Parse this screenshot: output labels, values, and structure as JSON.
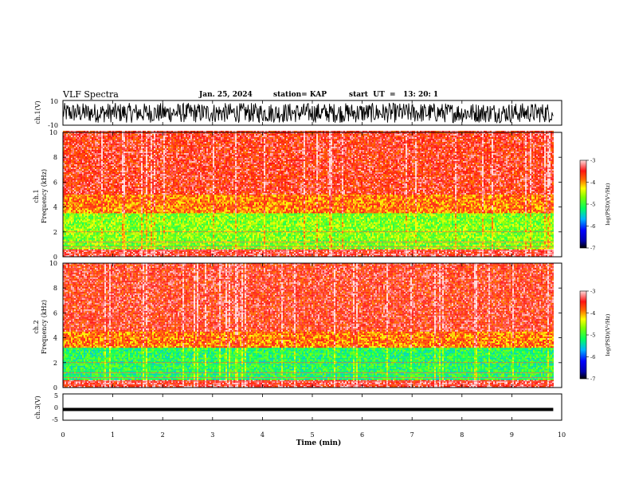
{
  "header": {
    "title": "VLF Spectra",
    "date": "Jan. 25, 2024",
    "station": "station= KAP",
    "start_ut": "start  UT  =   13: 20: 1"
  },
  "chart_data": [
    {
      "type": "line",
      "panel": "ch1-waveform",
      "ylabel": "ch.1(V)",
      "ytick_labels": [
        "10",
        "-10"
      ],
      "ylim": [
        -10,
        10
      ],
      "xlim": [
        0,
        10
      ],
      "data_end_min": 9.83,
      "description_of_values": "dense broadband waveform spanning roughly -8 to +8 V",
      "amplitude_range": [
        -8,
        8
      ]
    },
    {
      "type": "heatmap",
      "panel": "ch1-spectrogram",
      "ylabel": "ch.1\nFrequency (kHz)",
      "ytick_labels": [
        "0",
        "2",
        "4",
        "6",
        "8",
        "10"
      ],
      "ylim": [
        0,
        10
      ],
      "xlim": [
        0,
        10
      ],
      "colorbar": {
        "label": "log(PSD)(V²/Hz)",
        "tick_labels": [
          "-3",
          "-4",
          "-5",
          "-6",
          "-7"
        ],
        "range": [
          -7,
          -3
        ]
      },
      "bands": [
        {
          "fmin": 0,
          "fmax": 0.6,
          "level": -3.4
        },
        {
          "fmin": 0.6,
          "fmax": 3.5,
          "level": -4.7
        },
        {
          "fmin": 3.5,
          "fmax": 5,
          "level": -3.9
        },
        {
          "fmin": 5,
          "fmax": 10,
          "level": -3.5
        }
      ]
    },
    {
      "type": "heatmap",
      "panel": "ch2-spectrogram",
      "ylabel": "ch.2\nFrequency (kHz)",
      "ytick_labels": [
        "0",
        "2",
        "4",
        "6",
        "8",
        "10"
      ],
      "ylim": [
        0,
        10
      ],
      "xlim": [
        0,
        10
      ],
      "colorbar": {
        "label": "log(PSD)(V²/Hz)",
        "tick_labels": [
          "-3",
          "-4",
          "-5",
          "-6",
          "-7"
        ],
        "range": [
          -7,
          -3
        ]
      },
      "bands": [
        {
          "fmin": 0,
          "fmax": 0.6,
          "level": -3.4
        },
        {
          "fmin": 0.6,
          "fmax": 3.2,
          "level": -5.1
        },
        {
          "fmin": 3.2,
          "fmax": 4.5,
          "level": -3.9
        },
        {
          "fmin": 4.5,
          "fmax": 10,
          "level": -3.5
        }
      ]
    },
    {
      "type": "line",
      "panel": "ch3-waveform",
      "ylabel": "ch.3(V)",
      "ytick_labels": [
        "5",
        "0",
        "-5"
      ],
      "ylim": [
        -5,
        5
      ],
      "xlim": [
        0,
        10
      ],
      "data_end_min": 9.83,
      "amplitude_range": [
        -1.5,
        -0.3
      ],
      "xlabel": "Time  (min)",
      "xtick_labels": [
        "0",
        "1",
        "2",
        "3",
        "4",
        "5",
        "6",
        "7",
        "8",
        "9",
        "10"
      ]
    }
  ]
}
